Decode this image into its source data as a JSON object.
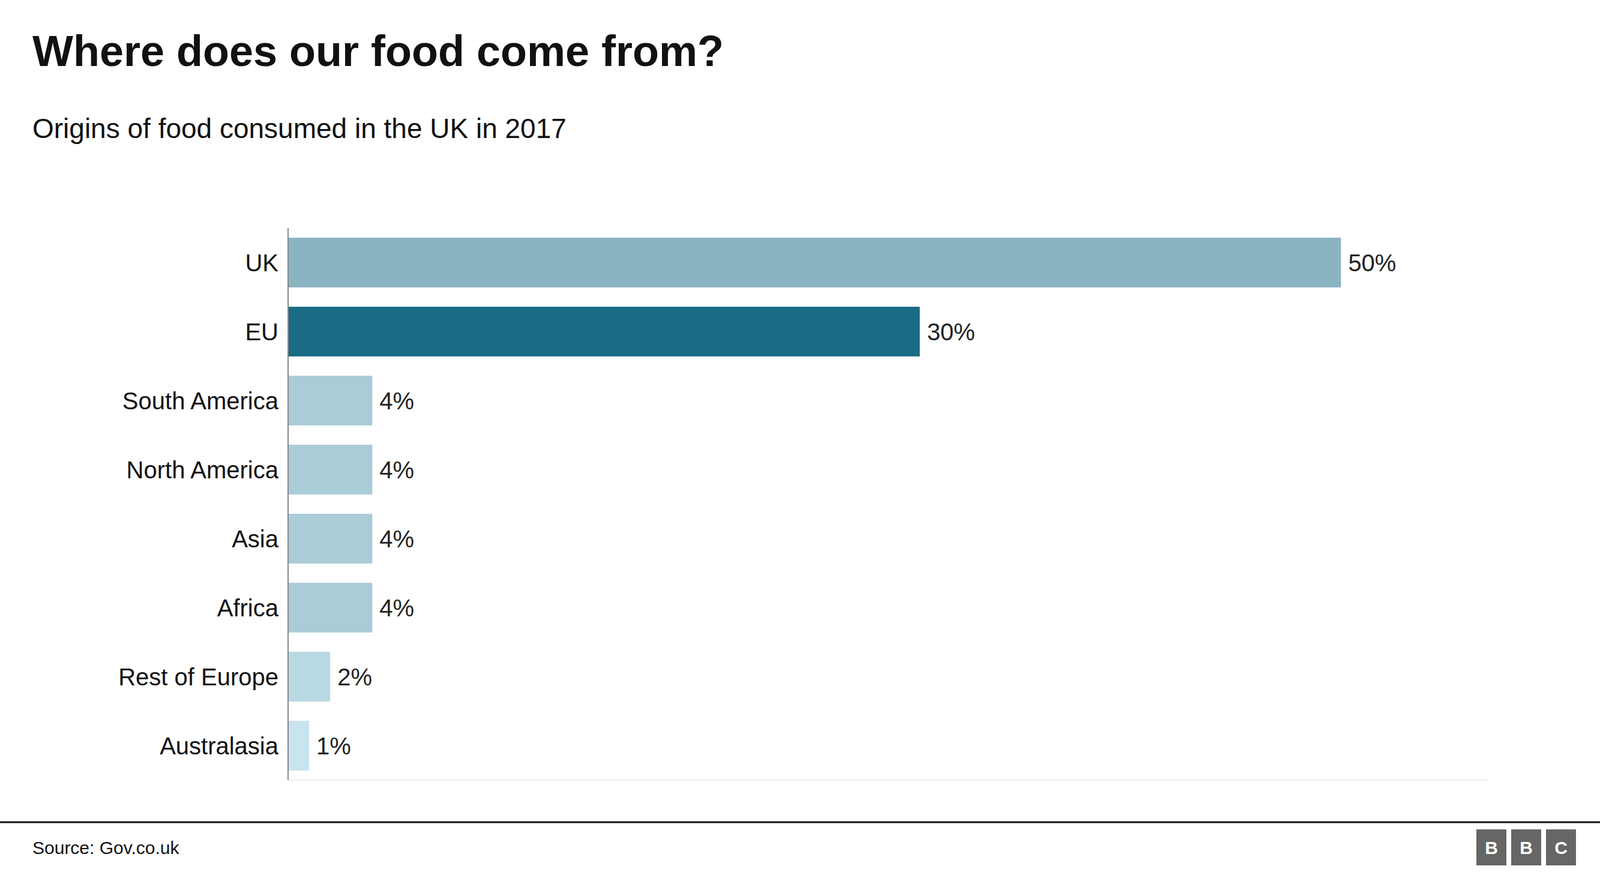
{
  "chart_data": {
    "type": "bar",
    "orientation": "horizontal",
    "title": "Where does our food come from?",
    "subtitle": "Origins of food consumed in the UK in 2017",
    "source": "Source: Gov.co.uk",
    "logo": [
      "B",
      "B",
      "C"
    ],
    "categories": [
      "UK",
      "EU",
      "South America",
      "North America",
      "Asia",
      "Africa",
      "Rest of Europe",
      "Australasia"
    ],
    "values": [
      50,
      30,
      4,
      4,
      4,
      4,
      2,
      1
    ],
    "value_labels": [
      "50%",
      "30%",
      "4%",
      "4%",
      "4%",
      "4%",
      "2%",
      "1%"
    ],
    "colors": [
      "#8ab4c2",
      "#1a6b85",
      "#aaccd8",
      "#aaccd8",
      "#aaccd8",
      "#aaccd8",
      "#b8d8e4",
      "#c8e4ee"
    ],
    "xlim": [
      0,
      57
    ],
    "data_labels": true,
    "tick_labels": "y",
    "grid": false
  }
}
